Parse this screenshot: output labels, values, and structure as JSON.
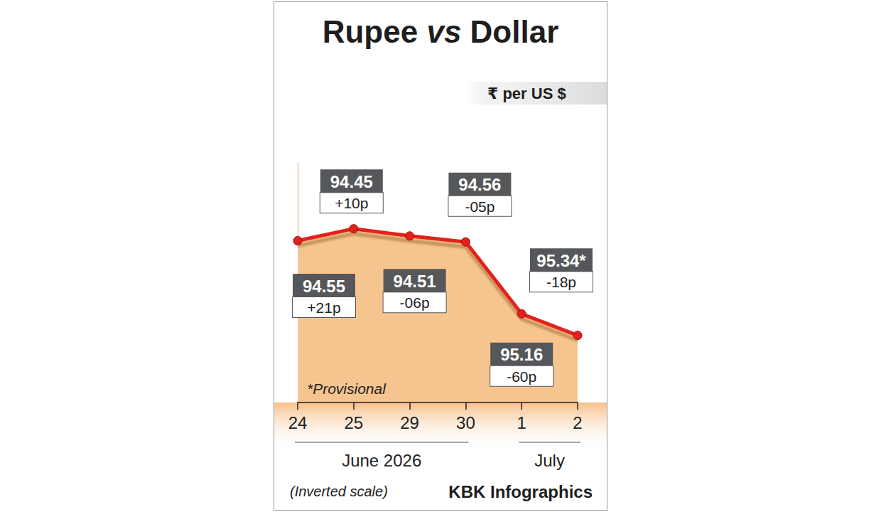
{
  "chart_data": {
    "type": "line",
    "title": "Rupee vs Dollar",
    "unit": "₹ per US $",
    "categories": [
      "24",
      "25",
      "29",
      "30",
      "1",
      "2"
    ],
    "x_groups": [
      {
        "label": "June 2026",
        "first": "24",
        "last": "30"
      },
      {
        "label": "July",
        "first": "1",
        "last": "2"
      }
    ],
    "values": [
      94.55,
      94.45,
      94.51,
      94.56,
      95.16,
      95.34
    ],
    "value_labels": [
      "94.55",
      "94.45",
      "94.51",
      "94.56",
      "95.16",
      "95.34*"
    ],
    "change_labels": [
      "+21p",
      "+10p",
      "-06p",
      "-05p",
      "-60p",
      "-18p"
    ],
    "color": "#e3201b",
    "marker": "circle",
    "ylim": [
      93.9,
      95.9
    ],
    "grid": false,
    "data_labels": true,
    "tick_labels": "x",
    "notes": [
      "*Provisional",
      "(Inverted scale)"
    ],
    "source": "KBK Infographics"
  }
}
